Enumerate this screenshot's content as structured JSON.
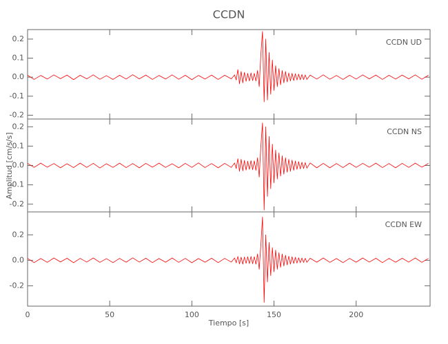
{
  "chart_data": [
    {
      "type": "line",
      "title": "CCDN",
      "annotation": "CCDN   UD",
      "xlim": [
        0,
        245
      ],
      "ylim": [
        -0.22,
        0.25
      ],
      "yticks": [
        -0.2,
        -0.1,
        {
          "value": 0,
          "label": "0.0"
        },
        0.1,
        0.2
      ],
      "series": [
        {
          "name": "UD",
          "color": "#ff0000",
          "x": [
            0,
            4,
            8,
            12,
            16,
            20,
            24,
            28,
            32,
            36,
            40,
            44,
            48,
            52,
            56,
            60,
            64,
            68,
            72,
            76,
            80,
            84,
            88,
            92,
            96,
            100,
            104,
            108,
            112,
            116,
            120,
            124,
            126,
            127,
            128,
            129,
            130,
            131,
            132,
            133,
            134,
            135,
            136,
            137,
            138,
            139,
            140,
            141,
            142,
            143,
            144,
            145,
            146,
            147,
            148,
            149,
            150,
            151,
            152,
            153,
            154,
            155,
            156,
            157,
            158,
            159,
            160,
            161,
            162,
            163,
            164,
            165,
            166,
            167,
            168,
            169,
            170,
            172,
            176,
            180,
            184,
            188,
            192,
            196,
            200,
            204,
            208,
            212,
            216,
            220,
            224,
            228,
            232,
            236,
            240,
            244
          ],
          "values": [
            0.01,
            -0.012,
            0.009,
            -0.01,
            0.012,
            -0.008,
            0.011,
            -0.013,
            0.01,
            -0.009,
            0.012,
            -0.011,
            0.008,
            -0.012,
            0.01,
            -0.01,
            0.013,
            -0.009,
            0.011,
            -0.012,
            0.009,
            -0.01,
            0.012,
            -0.011,
            0.01,
            -0.013,
            0.009,
            -0.01,
            0.011,
            -0.012,
            0.01,
            -0.009,
            0.012,
            -0.015,
            0.04,
            -0.035,
            0.03,
            -0.03,
            0.025,
            -0.022,
            0.02,
            -0.02,
            0.022,
            -0.018,
            0.02,
            -0.02,
            0.035,
            -0.05,
            0.12,
            0.24,
            -0.13,
            0.2,
            -0.12,
            0.13,
            -0.09,
            0.09,
            -0.07,
            0.06,
            -0.05,
            0.045,
            -0.04,
            0.035,
            -0.03,
            0.03,
            -0.025,
            0.022,
            -0.02,
            0.02,
            -0.018,
            0.018,
            -0.015,
            0.016,
            -0.014,
            0.014,
            -0.013,
            0.012,
            -0.012,
            0.011,
            -0.01,
            0.012,
            -0.011,
            0.009,
            -0.012,
            0.01,
            -0.01,
            0.012,
            -0.009,
            0.011,
            -0.012,
            0.01,
            -0.01,
            0.011,
            -0.009,
            0.012,
            -0.011,
            0.01
          ]
        }
      ]
    },
    {
      "type": "line",
      "ylabel": "Amplitud [cm/s/s]",
      "annotation": "CCDN   NS",
      "xlim": [
        0,
        245
      ],
      "ylim": [
        -0.24,
        0.24
      ],
      "yticks": [
        -0.2,
        -0.1,
        {
          "value": 0,
          "label": "0.0"
        },
        0.1,
        0.2
      ],
      "series": [
        {
          "name": "NS",
          "color": "#ff0000",
          "x": [
            0,
            4,
            8,
            12,
            16,
            20,
            24,
            28,
            32,
            36,
            40,
            44,
            48,
            52,
            56,
            60,
            64,
            68,
            72,
            76,
            80,
            84,
            88,
            92,
            96,
            100,
            104,
            108,
            112,
            116,
            120,
            124,
            126,
            127,
            128,
            129,
            130,
            131,
            132,
            133,
            134,
            135,
            136,
            137,
            138,
            139,
            140,
            141,
            142,
            143,
            144,
            145,
            146,
            147,
            148,
            149,
            150,
            151,
            152,
            153,
            154,
            155,
            156,
            157,
            158,
            159,
            160,
            161,
            162,
            163,
            164,
            165,
            166,
            167,
            168,
            169,
            170,
            172,
            176,
            180,
            184,
            188,
            192,
            196,
            200,
            204,
            208,
            212,
            216,
            220,
            224,
            228,
            232,
            236,
            240,
            244
          ],
          "values": [
            0.011,
            -0.01,
            0.012,
            -0.009,
            0.01,
            -0.012,
            0.009,
            -0.011,
            0.012,
            -0.01,
            0.011,
            -0.013,
            0.009,
            -0.01,
            0.012,
            -0.011,
            0.01,
            -0.012,
            0.011,
            -0.009,
            0.012,
            -0.01,
            0.009,
            -0.012,
            0.011,
            -0.01,
            0.013,
            -0.011,
            0.01,
            -0.012,
            0.011,
            -0.01,
            0.013,
            -0.016,
            0.035,
            -0.03,
            0.032,
            -0.028,
            0.026,
            -0.024,
            0.022,
            -0.02,
            0.025,
            -0.022,
            0.024,
            -0.025,
            0.04,
            -0.06,
            0.1,
            0.22,
            -0.23,
            0.2,
            -0.16,
            0.15,
            -0.12,
            0.11,
            -0.09,
            0.08,
            -0.07,
            0.065,
            -0.055,
            0.05,
            -0.045,
            0.04,
            -0.035,
            0.032,
            -0.03,
            0.028,
            -0.025,
            0.023,
            -0.02,
            0.02,
            -0.018,
            0.017,
            -0.016,
            0.015,
            -0.014,
            0.013,
            -0.012,
            0.011,
            -0.012,
            0.01,
            -0.011,
            0.012,
            -0.01,
            0.011,
            -0.009,
            0.012,
            -0.011,
            0.01,
            -0.012,
            0.011,
            -0.01,
            0.012,
            -0.009,
            0.011
          ]
        }
      ]
    },
    {
      "type": "line",
      "xlabel": "Tiempo [s]",
      "annotation": "CCDN   EW",
      "xlim": [
        0,
        245
      ],
      "ylim": [
        -0.36,
        0.38
      ],
      "xticks": [
        0,
        50,
        100,
        150,
        200
      ],
      "yticks": [
        -0.2,
        {
          "value": 0,
          "label": "0.0"
        },
        0.2
      ],
      "series": [
        {
          "name": "EW",
          "color": "#ff0000",
          "x": [
            0,
            4,
            8,
            12,
            16,
            20,
            24,
            28,
            32,
            36,
            40,
            44,
            48,
            52,
            56,
            60,
            64,
            68,
            72,
            76,
            80,
            84,
            88,
            92,
            96,
            100,
            104,
            108,
            112,
            116,
            120,
            124,
            126,
            127,
            128,
            129,
            130,
            131,
            132,
            133,
            134,
            135,
            136,
            137,
            138,
            139,
            140,
            141,
            142,
            143,
            144,
            145,
            146,
            147,
            148,
            149,
            150,
            151,
            152,
            153,
            154,
            155,
            156,
            157,
            158,
            159,
            160,
            161,
            162,
            163,
            164,
            165,
            166,
            167,
            168,
            169,
            170,
            172,
            176,
            180,
            184,
            188,
            192,
            196,
            200,
            204,
            208,
            212,
            216,
            220,
            224,
            228,
            232,
            236,
            240,
            244
          ],
          "values": [
            0.015,
            -0.018,
            0.014,
            -0.016,
            0.018,
            -0.013,
            0.016,
            -0.019,
            0.015,
            -0.014,
            0.018,
            -0.016,
            0.013,
            -0.018,
            0.015,
            -0.015,
            0.019,
            -0.014,
            0.016,
            -0.018,
            0.014,
            -0.015,
            0.018,
            -0.016,
            0.015,
            -0.019,
            0.014,
            -0.015,
            0.016,
            -0.018,
            0.015,
            -0.014,
            0.018,
            -0.02,
            0.03,
            -0.028,
            0.025,
            -0.03,
            0.026,
            -0.024,
            0.028,
            -0.025,
            0.03,
            -0.027,
            0.028,
            -0.03,
            0.05,
            -0.07,
            0.12,
            0.34,
            -0.33,
            0.2,
            -0.17,
            0.14,
            -0.12,
            0.1,
            -0.09,
            0.08,
            -0.07,
            0.06,
            -0.055,
            0.05,
            -0.045,
            0.04,
            -0.036,
            0.032,
            -0.03,
            0.028,
            -0.025,
            0.024,
            -0.022,
            0.02,
            -0.019,
            0.018,
            -0.017,
            0.016,
            -0.016,
            0.016,
            -0.015,
            0.018,
            -0.016,
            0.014,
            -0.018,
            0.015,
            -0.015,
            0.018,
            -0.014,
            0.016,
            -0.018,
            0.015,
            -0.015,
            0.016,
            -0.014,
            0.018,
            -0.016,
            0.015
          ]
        }
      ]
    }
  ]
}
